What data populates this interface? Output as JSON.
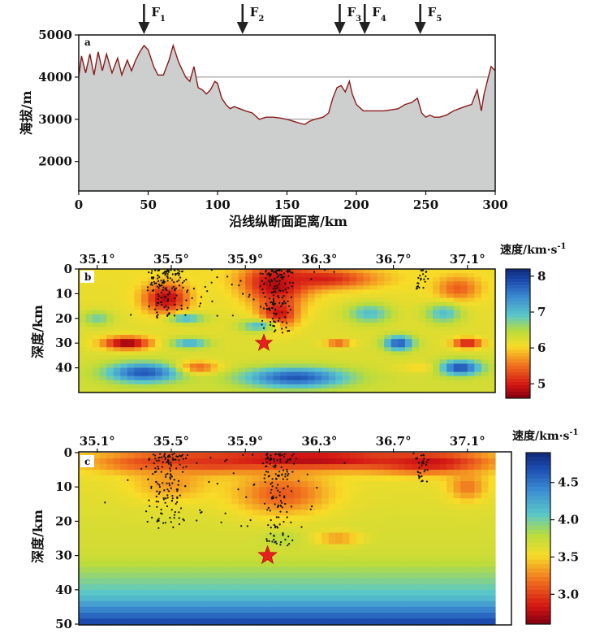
{
  "chart_data": [
    {
      "type": "area",
      "panel_label": "a",
      "xlabel": "沿线纵断面距离/km",
      "ylabel": "海拔/m",
      "xlim": [
        0,
        300
      ],
      "ylim": [
        1300,
        5000
      ],
      "xticks": [
        "0",
        "50",
        "100",
        "150",
        "200",
        "250",
        "300"
      ],
      "yticks": [
        "2000",
        "3000",
        "4000",
        "5000"
      ],
      "grid_y": [
        2000,
        3000,
        4000
      ],
      "fill_color": "#cdcfcf",
      "line_color": "#8b1a1a",
      "faults": [
        {
          "label": "F",
          "sub": "1",
          "x": 47
        },
        {
          "label": "F",
          "sub": "2",
          "x": 118
        },
        {
          "label": "F",
          "sub": "3",
          "x": 188
        },
        {
          "label": "F",
          "sub": "4",
          "x": 206
        },
        {
          "label": "F",
          "sub": "5",
          "x": 246
        }
      ],
      "profile": [
        [
          0,
          4000
        ],
        [
          2,
          4500
        ],
        [
          5,
          4100
        ],
        [
          8,
          4550
        ],
        [
          11,
          4050
        ],
        [
          14,
          4600
        ],
        [
          17,
          4150
        ],
        [
          20,
          4550
        ],
        [
          24,
          4100
        ],
        [
          28,
          4450
        ],
        [
          31,
          4050
        ],
        [
          35,
          4400
        ],
        [
          38,
          4150
        ],
        [
          41,
          4400
        ],
        [
          44,
          4600
        ],
        [
          47,
          4750
        ],
        [
          50,
          4650
        ],
        [
          54,
          4250
        ],
        [
          57,
          4050
        ],
        [
          61,
          4050
        ],
        [
          65,
          4400
        ],
        [
          68,
          4750
        ],
        [
          72,
          4350
        ],
        [
          77,
          4000
        ],
        [
          80,
          3900
        ],
        [
          83,
          4250
        ],
        [
          86,
          3750
        ],
        [
          89,
          3700
        ],
        [
          92,
          3600
        ],
        [
          95,
          3700
        ],
        [
          98,
          3900
        ],
        [
          100,
          3850
        ],
        [
          103,
          3500
        ],
        [
          106,
          3350
        ],
        [
          109,
          3250
        ],
        [
          112,
          3300
        ],
        [
          116,
          3250
        ],
        [
          120,
          3200
        ],
        [
          125,
          3150
        ],
        [
          130,
          3000
        ],
        [
          135,
          3050
        ],
        [
          140,
          3050
        ],
        [
          145,
          3030
        ],
        [
          150,
          3000
        ],
        [
          155,
          2950
        ],
        [
          160,
          2900
        ],
        [
          163,
          2880
        ],
        [
          166,
          2950
        ],
        [
          170,
          3000
        ],
        [
          176,
          3050
        ],
        [
          180,
          3150
        ],
        [
          183,
          3500
        ],
        [
          186,
          3750
        ],
        [
          189,
          3800
        ],
        [
          192,
          3650
        ],
        [
          195,
          3900
        ],
        [
          197,
          3600
        ],
        [
          200,
          3350
        ],
        [
          205,
          3200
        ],
        [
          210,
          3200
        ],
        [
          220,
          3200
        ],
        [
          230,
          3250
        ],
        [
          235,
          3350
        ],
        [
          240,
          3400
        ],
        [
          244,
          3500
        ],
        [
          247,
          3150
        ],
        [
          250,
          3050
        ],
        [
          253,
          3100
        ],
        [
          256,
          3050
        ],
        [
          260,
          3050
        ],
        [
          265,
          3100
        ],
        [
          270,
          3200
        ],
        [
          278,
          3300
        ],
        [
          283,
          3350
        ],
        [
          287,
          3700
        ],
        [
          290,
          3200
        ],
        [
          292,
          3600
        ],
        [
          295,
          4000
        ],
        [
          297,
          4250
        ],
        [
          300,
          4150
        ]
      ]
    },
    {
      "type": "heatmap",
      "panel_label": "b",
      "ylabel": "深度/km",
      "colorbar_title": "速度/km·s",
      "colorbar_sup": "-1",
      "xlim": [
        35.0,
        37.25
      ],
      "ylim": [
        0,
        50
      ],
      "xticks": [
        "35.1°",
        "35.5°",
        "35.9°",
        "36.3°",
        "36.7°",
        "37.1°"
      ],
      "yticks": [
        "0",
        "10",
        "20",
        "30",
        "40"
      ],
      "colorbar_ticks": [
        "8",
        "7",
        "6",
        "5"
      ],
      "vmin": 4.6,
      "vmax": 8.2,
      "star": {
        "lon": 36.0,
        "depth": 30
      },
      "anomalies": [
        {
          "lon": 36.07,
          "depth": 6,
          "rx": 0.17,
          "ry": 8,
          "value": 4.7
        },
        {
          "lon": 36.08,
          "depth": 18,
          "rx": 0.1,
          "ry": 6,
          "value": 4.9
        },
        {
          "lon": 36.3,
          "depth": 4,
          "rx": 0.3,
          "ry": 4,
          "value": 5.0
        },
        {
          "lon": 35.47,
          "depth": 12,
          "rx": 0.12,
          "ry": 6,
          "value": 4.8
        },
        {
          "lon": 35.26,
          "depth": 30,
          "rx": 0.13,
          "ry": 2.5,
          "value": 4.6
        },
        {
          "lon": 37.1,
          "depth": 30,
          "rx": 0.08,
          "ry": 2,
          "value": 4.9
        },
        {
          "lon": 36.4,
          "depth": 30,
          "rx": 0.07,
          "ry": 1.5,
          "value": 5.3
        },
        {
          "lon": 35.63,
          "depth": 40,
          "rx": 0.12,
          "ry": 2.5,
          "value": 5.2
        },
        {
          "lon": 37.05,
          "depth": 8,
          "rx": 0.12,
          "ry": 5,
          "value": 5.4
        },
        {
          "lon": 36.95,
          "depth": 40,
          "rx": 0.18,
          "ry": 2,
          "value": 5.8
        },
        {
          "lon": 35.35,
          "depth": 42,
          "rx": 0.2,
          "ry": 4,
          "value": 7.8
        },
        {
          "lon": 36.17,
          "depth": 44,
          "rx": 0.28,
          "ry": 4,
          "value": 7.8
        },
        {
          "lon": 37.06,
          "depth": 40,
          "rx": 0.12,
          "ry": 3,
          "value": 7.9
        },
        {
          "lon": 36.73,
          "depth": 30,
          "rx": 0.08,
          "ry": 3,
          "value": 7.8
        },
        {
          "lon": 35.6,
          "depth": 30,
          "rx": 0.1,
          "ry": 2,
          "value": 7.2
        },
        {
          "lon": 35.58,
          "depth": 20,
          "rx": 0.1,
          "ry": 2,
          "value": 7.1
        },
        {
          "lon": 36.57,
          "depth": 18,
          "rx": 0.12,
          "ry": 4,
          "value": 7.0
        },
        {
          "lon": 36.97,
          "depth": 18,
          "rx": 0.1,
          "ry": 4,
          "value": 7.0
        },
        {
          "lon": 35.97,
          "depth": 23,
          "rx": 0.1,
          "ry": 2.5,
          "value": 7.0
        },
        {
          "lon": 35.1,
          "depth": 20,
          "rx": 0.08,
          "ry": 3,
          "value": 6.8
        }
      ]
    },
    {
      "type": "heatmap",
      "panel_label": "c",
      "ylabel": "深度/km",
      "colorbar_title": "速度/km·s",
      "colorbar_sup": "-1",
      "xlim": [
        35.0,
        37.25
      ],
      "ylim": [
        0,
        50
      ],
      "xticks": [
        "35.1°",
        "35.5°",
        "35.9°",
        "36.3°",
        "36.7°",
        "37.1°"
      ],
      "yticks": [
        "0",
        "10",
        "20",
        "30",
        "40",
        "50"
      ],
      "colorbar_ticks": [
        "4.5",
        "4.0",
        "3.5",
        "3.0"
      ],
      "vmin": 2.6,
      "vmax": 4.9,
      "star": {
        "lon": 36.02,
        "depth": 30
      },
      "anomalies": [
        {
          "lon": 36.2,
          "depth": 2,
          "rx": 0.7,
          "ry": 3,
          "value": 2.7
        },
        {
          "lon": 35.55,
          "depth": 3,
          "rx": 0.4,
          "ry": 3,
          "value": 2.9
        },
        {
          "lon": 36.9,
          "depth": 3,
          "rx": 0.3,
          "ry": 3,
          "value": 2.8
        },
        {
          "lon": 36.1,
          "depth": 12,
          "rx": 0.25,
          "ry": 6,
          "value": 3.1
        },
        {
          "lon": 35.5,
          "depth": 9,
          "rx": 0.2,
          "ry": 5,
          "value": 3.3
        },
        {
          "lon": 37.1,
          "depth": 10,
          "rx": 0.1,
          "ry": 4,
          "value": 3.2
        },
        {
          "lon": 36.4,
          "depth": 25,
          "rx": 0.12,
          "ry": 2,
          "value": 3.3
        },
        {
          "lon": 36.1,
          "depth": 25,
          "rx": 0.1,
          "ry": 2,
          "value": 3.8
        }
      ]
    }
  ]
}
